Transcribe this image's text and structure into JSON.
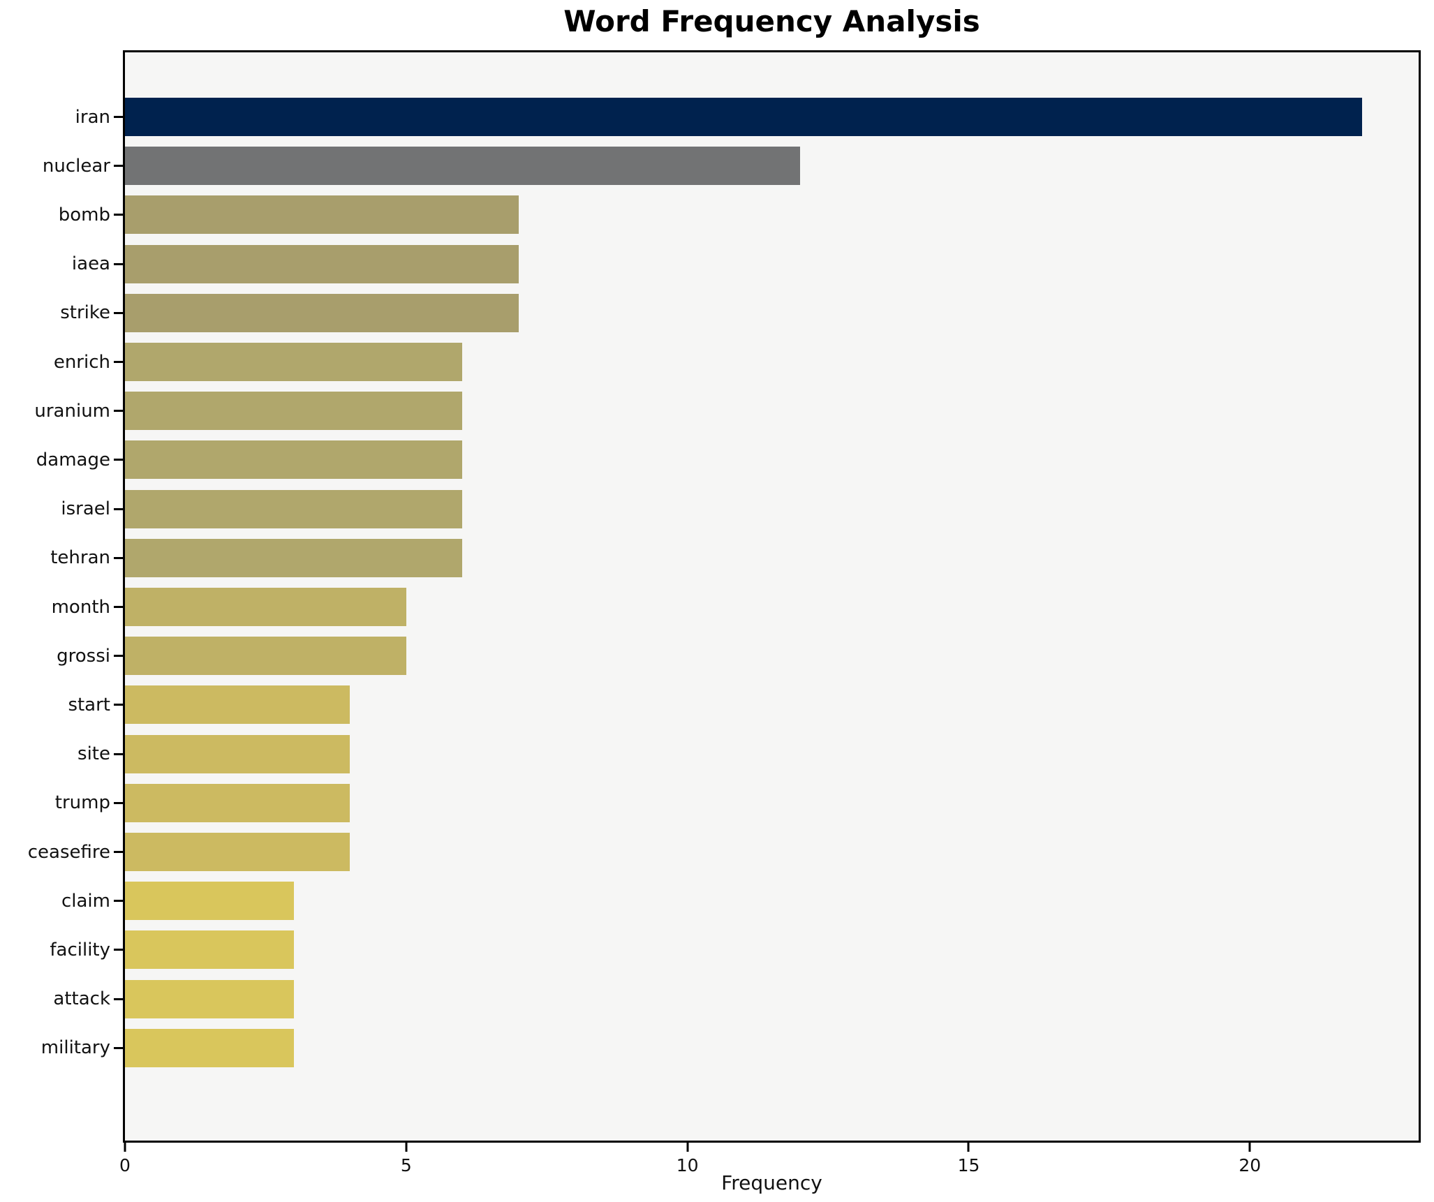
{
  "title": "Word Frequency Analysis",
  "chart_data": {
    "type": "bar",
    "orientation": "horizontal",
    "title": "Word Frequency Analysis",
    "xlabel": "Frequency",
    "ylabel": "",
    "xlim": [
      0,
      23
    ],
    "x_ticks": [
      0,
      5,
      10,
      15,
      20
    ],
    "grid": false,
    "legend": "none",
    "categories": [
      "iran",
      "nuclear",
      "bomb",
      "iaea",
      "strike",
      "enrich",
      "uranium",
      "damage",
      "israel",
      "tehran",
      "month",
      "grossi",
      "start",
      "site",
      "trump",
      "ceasefire",
      "claim",
      "facility",
      "attack",
      "military"
    ],
    "values": [
      22,
      12,
      7,
      7,
      7,
      6,
      6,
      6,
      6,
      6,
      5,
      5,
      4,
      4,
      4,
      4,
      3,
      3,
      3,
      3
    ],
    "bar_colors": [
      "#00224e",
      "#727374",
      "#a89e6c",
      "#a89e6c",
      "#a89e6c",
      "#b0a76c",
      "#b0a76c",
      "#b0a76c",
      "#b0a76c",
      "#b0a76c",
      "#bfb166",
      "#bfb166",
      "#ccba61",
      "#ccba61",
      "#ccba61",
      "#ccba61",
      "#d9c65c",
      "#d9c65c",
      "#d9c65c",
      "#d9c65c"
    ]
  },
  "colors": {
    "plot_background": "#f6f6f5",
    "page_background": "#ffffff",
    "spine": "#000000",
    "text": "#111111"
  }
}
